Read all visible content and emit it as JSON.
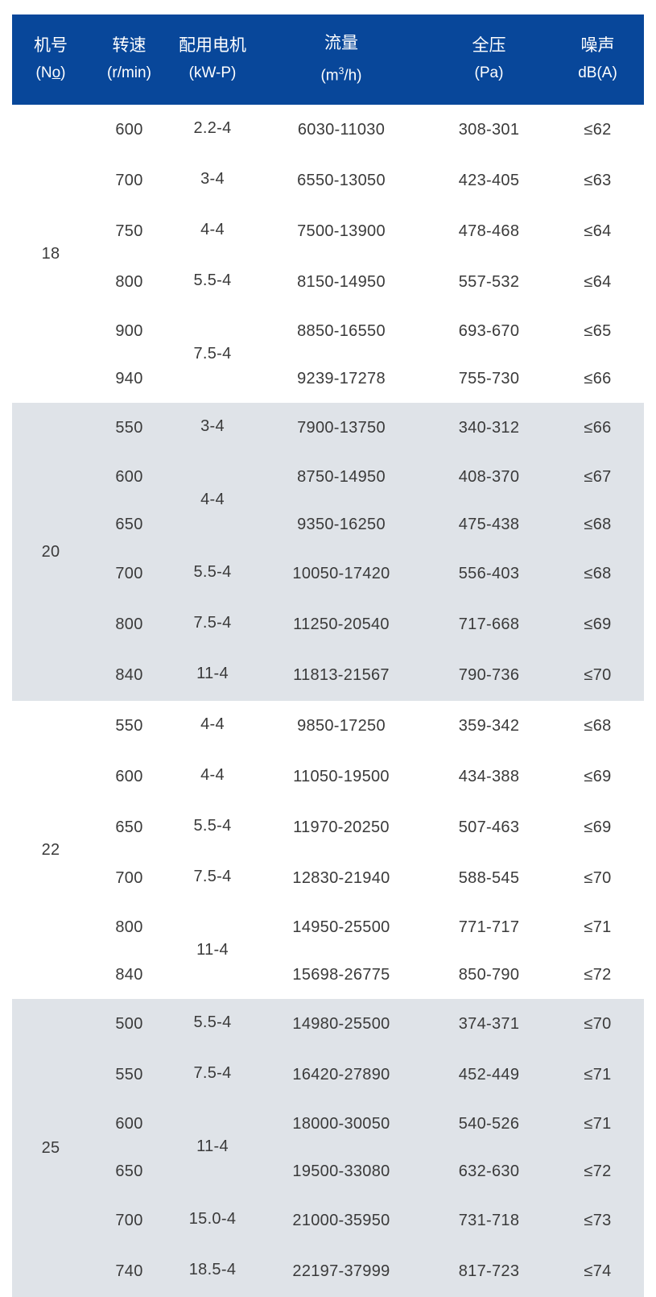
{
  "colors": {
    "header_bg": "#08479a",
    "shaded_bg": "#dfe3e8"
  },
  "header": [
    {
      "title": "机号",
      "unit": "(No)"
    },
    {
      "title": "转速",
      "unit": "(r/min)"
    },
    {
      "title": "配用电机",
      "unit": "(kW-P)"
    },
    {
      "title": "流量",
      "unit": "(m3/h)"
    },
    {
      "title": "全压",
      "unit": "(Pa)"
    },
    {
      "title": "噪声",
      "unit": "dB(A)"
    }
  ],
  "groups": [
    {
      "no": "18",
      "shaded": false,
      "speeds": [
        "600",
        "700",
        "750",
        "800",
        "900",
        "940"
      ],
      "motors": [
        {
          "label": "2.2-4",
          "rows": 1
        },
        {
          "label": "3-4",
          "rows": 1
        },
        {
          "label": "4-4",
          "rows": 1
        },
        {
          "label": "5.5-4",
          "rows": 1
        },
        {
          "label": "7.5-4",
          "rows": 2
        }
      ],
      "flows": [
        "6030-11030",
        "6550-13050",
        "7500-13900",
        "8150-14950",
        "8850-16550",
        "9239-17278"
      ],
      "pressures": [
        "308-301",
        "423-405",
        "478-468",
        "557-532",
        "693-670",
        "755-730"
      ],
      "noise": [
        "≤62",
        "≤63",
        "≤64",
        "≤64",
        "≤65",
        "≤66"
      ]
    },
    {
      "no": "20",
      "shaded": true,
      "speeds": [
        "550",
        "600",
        "650",
        "700",
        "800",
        "840"
      ],
      "motors": [
        {
          "label": "3-4",
          "rows": 1
        },
        {
          "label": "4-4",
          "rows": 2
        },
        {
          "label": "5.5-4",
          "rows": 1
        },
        {
          "label": "7.5-4",
          "rows": 1
        },
        {
          "label": "11-4",
          "rows": 1
        }
      ],
      "flows": [
        "7900-13750",
        "8750-14950",
        "9350-16250",
        "10050-17420",
        "11250-20540",
        "11813-21567"
      ],
      "pressures": [
        "340-312",
        "408-370",
        "475-438",
        "556-403",
        "717-668",
        "790-736"
      ],
      "noise": [
        "≤66",
        "≤67",
        "≤68",
        "≤68",
        "≤69",
        "≤70"
      ]
    },
    {
      "no": "22",
      "shaded": false,
      "speeds": [
        "550",
        "600",
        "650",
        "700",
        "800",
        "840"
      ],
      "motors": [
        {
          "label": "4-4",
          "rows": 1
        },
        {
          "label": "4-4",
          "rows": 1
        },
        {
          "label": "5.5-4",
          "rows": 1
        },
        {
          "label": "7.5-4",
          "rows": 1
        },
        {
          "label": "11-4",
          "rows": 2
        }
      ],
      "flows": [
        "9850-17250",
        "11050-19500",
        "11970-20250",
        "12830-21940",
        "14950-25500",
        "15698-26775"
      ],
      "pressures": [
        "359-342",
        "434-388",
        "507-463",
        "588-545",
        "771-717",
        "850-790"
      ],
      "noise": [
        "≤68",
        "≤69",
        "≤69",
        "≤70",
        "≤71",
        "≤72"
      ]
    },
    {
      "no": "25",
      "shaded": true,
      "speeds": [
        "500",
        "550",
        "600",
        "650",
        "700",
        "740"
      ],
      "motors": [
        {
          "label": "5.5-4",
          "rows": 1
        },
        {
          "label": "7.5-4",
          "rows": 1
        },
        {
          "label": "11-4",
          "rows": 2
        },
        {
          "label": "15.0-4",
          "rows": 1
        },
        {
          "label": "18.5-4",
          "rows": 1
        }
      ],
      "flows": [
        "14980-25500",
        "16420-27890",
        "18000-30050",
        "19500-33080",
        "21000-35950",
        "22197-37999"
      ],
      "pressures": [
        "374-371",
        "452-449",
        "540-526",
        "632-630",
        "731-718",
        "817-723"
      ],
      "noise": [
        "≤70",
        "≤71",
        "≤71",
        "≤72",
        "≤73",
        "≤74"
      ]
    }
  ]
}
